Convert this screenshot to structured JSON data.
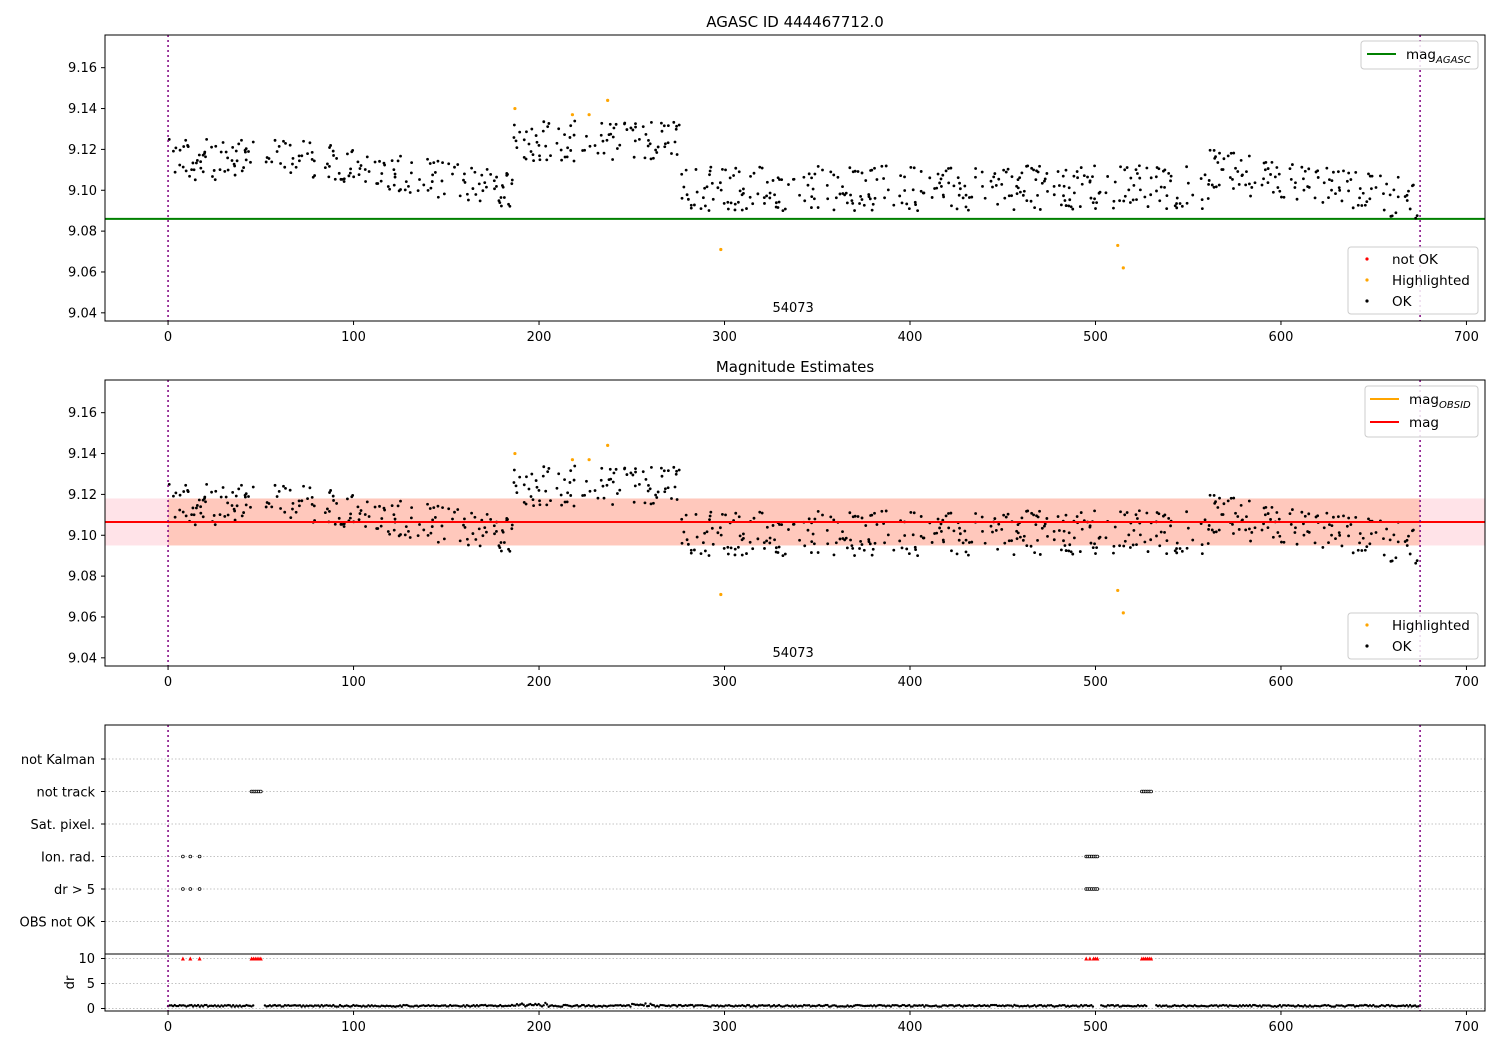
{
  "chart_data": [
    {
      "type": "scatter",
      "title": "AGASC ID 444467712.0",
      "xlim": [
        -34,
        710
      ],
      "ylim": [
        9.036,
        9.176
      ],
      "xticks": [
        0,
        100,
        200,
        300,
        400,
        500,
        600,
        700
      ],
      "yticks": [
        9.04,
        9.06,
        9.08,
        9.1,
        9.12,
        9.14,
        9.16
      ],
      "vlines": [
        0,
        675
      ],
      "obsid_label": "54073",
      "obsid_label_x": 337,
      "line": {
        "name": "mag_AGASC",
        "y": 9.086,
        "x_range": [
          -34,
          710
        ],
        "color": "#008000"
      },
      "legends": {
        "lines": [
          {
            "label_main": "mag",
            "label_sub": "AGASC",
            "color": "#008000"
          }
        ],
        "points": [
          {
            "label": "not OK",
            "color": "#ff0000"
          },
          {
            "label": "Highlighted",
            "color": "#ffa500"
          },
          {
            "label": "OK",
            "color": "#000000"
          }
        ]
      },
      "highlighted": [
        [
          187,
          9.14
        ],
        [
          218,
          9.137
        ],
        [
          227,
          9.137
        ],
        [
          237,
          9.144
        ],
        [
          298,
          9.071
        ],
        [
          512,
          9.073
        ],
        [
          515,
          9.062
        ]
      ],
      "ok_segments": [
        {
          "x0": 0,
          "x1": 45,
          "base": 9.115,
          "amp": 0.01
        },
        {
          "x0": 52,
          "x1": 185,
          "base_start": 9.118,
          "base_end": 9.1,
          "amp": 0.009
        },
        {
          "x0": 186,
          "x1": 275,
          "base": 9.124,
          "amp": 0.01
        },
        {
          "x0": 276,
          "x1": 560,
          "base": 9.101,
          "amp": 0.011
        },
        {
          "x0": 561,
          "x1": 675,
          "base_start": 9.11,
          "base_end": 9.095,
          "amp": 0.01
        }
      ]
    },
    {
      "type": "scatter",
      "title": "Magnitude Estimates",
      "xlim": [
        -34,
        710
      ],
      "ylim": [
        9.036,
        9.176
      ],
      "xticks": [
        0,
        100,
        200,
        300,
        400,
        500,
        600,
        700
      ],
      "yticks": [
        9.04,
        9.06,
        9.08,
        9.1,
        9.12,
        9.14,
        9.16
      ],
      "vlines": [
        0,
        675
      ],
      "obsid_label": "54073",
      "obsid_label_x": 337,
      "mag_line": {
        "name": "mag",
        "y": 9.1065,
        "color": "#ff0000"
      },
      "band_full": {
        "y0": 9.095,
        "y1": 9.118,
        "x_range": [
          -34,
          710
        ],
        "color": "#ffc0cb"
      },
      "band_obsid": {
        "y0": 9.095,
        "y1": 9.118,
        "x_range": [
          0,
          675
        ],
        "color": "#ffa07a"
      },
      "legends": {
        "lines": [
          {
            "label_main": "mag",
            "label_sub": "OBSID",
            "color": "#ffa500"
          },
          {
            "label_main": "mag",
            "label_sub": "",
            "color": "#ff0000"
          }
        ],
        "points": [
          {
            "label": "Highlighted",
            "color": "#ffa500"
          },
          {
            "label": "OK",
            "color": "#000000"
          }
        ]
      }
    },
    {
      "type": "scatter",
      "title": "",
      "xlim": [
        -34,
        710
      ],
      "xticks": [
        0,
        100,
        200,
        300,
        400,
        500,
        600,
        700
      ],
      "categories": [
        "not Kalman",
        "not track",
        "Sat. pixel.",
        "Ion. rad.",
        "dr > 5",
        "OBS not OK"
      ],
      "flags": {
        "not track": [
          [
            45,
            50
          ],
          [
            525,
            530
          ]
        ],
        "Ion. rad.": [
          [
            8,
            8
          ],
          [
            12,
            12
          ],
          [
            17,
            17
          ],
          [
            495,
            501
          ]
        ],
        "dr > 5": [
          [
            8,
            8
          ],
          [
            12,
            12
          ],
          [
            17,
            17
          ],
          [
            495,
            501
          ]
        ]
      },
      "dr": {
        "ylabel": "dr",
        "ylim": [
          -0.5,
          10.5
        ],
        "yticks": [
          0,
          5,
          10
        ],
        "flag_points_y": 10,
        "flag_x": [
          8,
          12,
          17,
          45,
          46,
          47,
          48,
          49,
          50,
          495,
          497,
          499,
          500,
          501,
          525,
          526,
          527,
          528,
          529,
          530
        ]
      },
      "vlines": [
        0,
        675
      ]
    }
  ]
}
